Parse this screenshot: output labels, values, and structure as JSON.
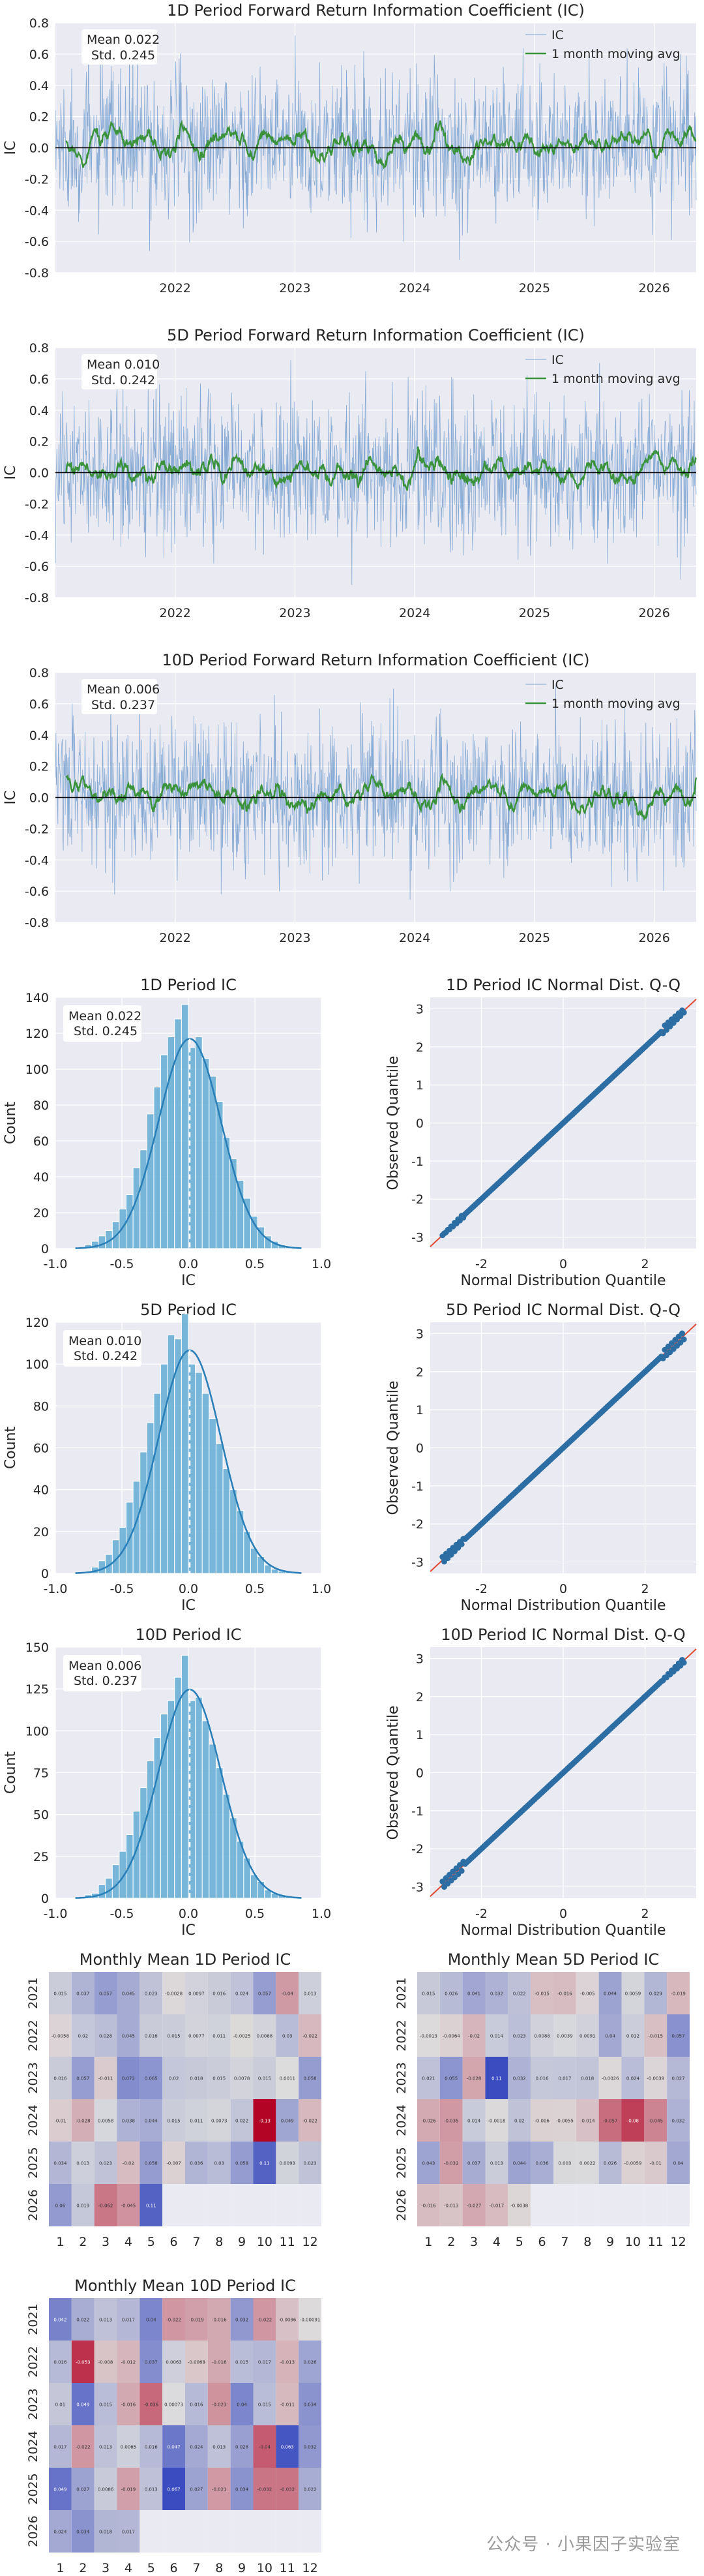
{
  "colors": {
    "panel_bg": "#eaeaf2",
    "grid": "#ffffff",
    "ic_line": "#5b8fc7",
    "moving_avg": "#3a923a",
    "hist_bar": "#5aa8d2",
    "kde": "#2a7fb8",
    "qq_point": "#2c6ea3",
    "qq_line": "#e24a33"
  },
  "timeseries": [
    {
      "title": "1D Period Forward Return Information Coefficient (IC)",
      "stats": [
        "Mean 0.022",
        "Std. 0.245"
      ],
      "ylabel": "IC",
      "legend": [
        "IC",
        "1 month moving avg"
      ],
      "yticks": [
        "0.8",
        "0.6",
        "0.4",
        "0.2",
        "0.0",
        "-0.2",
        "-0.4",
        "-0.6",
        "-0.8"
      ],
      "xticks": [
        "2022",
        "2023",
        "2024",
        "2025",
        "2026"
      ],
      "mean": 0.022,
      "std": 0.245
    },
    {
      "title": "5D Period Forward Return Information Coefficient (IC)",
      "stats": [
        "Mean 0.010",
        "Std. 0.242"
      ],
      "ylabel": "IC",
      "legend": [
        "IC",
        "1 month moving avg"
      ],
      "yticks": [
        "0.8",
        "0.6",
        "0.4",
        "0.2",
        "0.0",
        "-0.2",
        "-0.4",
        "-0.6",
        "-0.8"
      ],
      "xticks": [
        "2022",
        "2023",
        "2024",
        "2025",
        "2026"
      ],
      "mean": 0.01,
      "std": 0.242
    },
    {
      "title": "10D Period Forward Return Information Coefficient (IC)",
      "stats": [
        "Mean 0.006",
        "Std. 0.237"
      ],
      "ylabel": "IC",
      "legend": [
        "IC",
        "1 month moving avg"
      ],
      "yticks": [
        "0.8",
        "0.6",
        "0.4",
        "0.2",
        "0.0",
        "-0.2",
        "-0.4",
        "-0.6",
        "-0.8"
      ],
      "xticks": [
        "2022",
        "2023",
        "2024",
        "2025",
        "2026"
      ],
      "mean": 0.006,
      "std": 0.237
    }
  ],
  "histograms": [
    {
      "title": "1D Period IC",
      "stats": [
        "Mean 0.022",
        "Std. 0.245"
      ],
      "xlabel": "IC",
      "ylabel": "Count",
      "xticks": [
        "-1.0",
        "-0.5",
        "0.0",
        "0.5",
        "1.0"
      ],
      "yticks": [
        "140",
        "120",
        "100",
        "80",
        "60",
        "40",
        "20",
        "0"
      ],
      "ymax": 140,
      "counts": [
        2,
        4,
        7,
        10,
        15,
        22,
        30,
        45,
        55,
        75,
        90,
        108,
        118,
        128,
        136,
        112,
        118,
        106,
        96,
        82,
        62,
        50,
        38,
        28,
        18,
        12,
        7,
        4,
        2,
        1
      ]
    },
    {
      "title": "5D Period IC",
      "stats": [
        "Mean 0.010",
        "Std. 0.242"
      ],
      "xlabel": "IC",
      "ylabel": "Count",
      "xticks": [
        "-1.0",
        "-0.5",
        "0.0",
        "0.5",
        "1.0"
      ],
      "yticks": [
        "120",
        "100",
        "80",
        "60",
        "40",
        "20",
        "0"
      ],
      "ymax": 120,
      "counts": [
        1,
        3,
        6,
        9,
        16,
        22,
        34,
        44,
        58,
        72,
        86,
        100,
        114,
        112,
        124,
        100,
        96,
        86,
        74,
        62,
        50,
        40,
        30,
        20,
        12,
        8,
        4,
        2,
        1,
        1
      ]
    },
    {
      "title": "10D Period IC",
      "stats": [
        "Mean 0.006",
        "Std. 0.237"
      ],
      "xlabel": "IC",
      "ylabel": "Count",
      "xticks": [
        "-1.0",
        "-0.5",
        "0.0",
        "0.5",
        "1.0"
      ],
      "yticks": [
        "150",
        "125",
        "100",
        "75",
        "50",
        "25",
        "0"
      ],
      "ymax": 150,
      "counts": [
        2,
        3,
        8,
        12,
        20,
        28,
        38,
        52,
        66,
        82,
        96,
        110,
        118,
        132,
        145,
        118,
        120,
        106,
        92,
        78,
        62,
        48,
        34,
        24,
        14,
        10,
        5,
        3,
        2,
        1
      ]
    }
  ],
  "qq": [
    {
      "title": "1D Period IC Normal Dist. Q-Q",
      "xlabel": "Normal Distribution Quantile",
      "ylabel": "Observed Quantile",
      "xticks": [
        "-2",
        "0",
        "2"
      ],
      "yticks": [
        "3",
        "2",
        "1",
        "0",
        "-1",
        "-2",
        "-3"
      ]
    },
    {
      "title": "5D Period IC Normal Dist. Q-Q",
      "xlabel": "Normal Distribution Quantile",
      "ylabel": "Observed Quantile",
      "xticks": [
        "-2",
        "0",
        "2"
      ],
      "yticks": [
        "3",
        "2",
        "1",
        "0",
        "-1",
        "-2",
        "-3"
      ]
    },
    {
      "title": "10D Period IC Normal Dist. Q-Q",
      "xlabel": "Normal Distribution Quantile",
      "ylabel": "Observed Quantile",
      "xticks": [
        "-2",
        "0",
        "2"
      ],
      "yticks": [
        "3",
        "2",
        "1",
        "0",
        "-1",
        "-2",
        "-3"
      ]
    }
  ],
  "heatmaps": [
    {
      "title": "Monthly Mean 1D Period IC",
      "years": [
        "2021",
        "2022",
        "2023",
        "2024",
        "2025",
        "2026"
      ],
      "months": [
        "1",
        "2",
        "3",
        "4",
        "5",
        "6",
        "7",
        "8",
        "9",
        "10",
        "11",
        "12"
      ],
      "values": [
        [
          0.015,
          0.037,
          0.057,
          0.045,
          0.023,
          -0.0028,
          0.0097,
          0.016,
          0.024,
          0.057,
          -0.04,
          0.013
        ],
        [
          -0.0058,
          0.02,
          0.028,
          0.045,
          0.016,
          0.015,
          0.0077,
          0.011,
          -0.0025,
          0.0088,
          0.03,
          -0.022
        ],
        [
          0.016,
          0.057,
          -0.011,
          0.072,
          0.065,
          0.02,
          0.018,
          0.015,
          0.0078,
          0.015,
          0.0011,
          0.058
        ],
        [
          -0.01,
          -0.028,
          0.0058,
          0.038,
          0.044,
          0.015,
          0.011,
          0.0073,
          0.022,
          -0.13,
          0.049,
          -0.022
        ],
        [
          0.034,
          0.013,
          0.023,
          -0.02,
          0.058,
          -0.007,
          0.036,
          0.03,
          0.058,
          0.11,
          0.0093,
          0.023
        ],
        [
          0.06,
          0.019,
          -0.062,
          -0.045,
          0.11,
          null,
          null,
          null,
          null,
          null,
          null,
          null
        ]
      ]
    },
    {
      "title": "Monthly Mean 5D Period IC",
      "years": [
        "2021",
        "2022",
        "2023",
        "2024",
        "2025",
        "2026"
      ],
      "months": [
        "1",
        "2",
        "3",
        "4",
        "5",
        "6",
        "7",
        "8",
        "9",
        "10",
        "11",
        "12"
      ],
      "values": [
        [
          0.015,
          0.026,
          0.041,
          0.032,
          0.022,
          -0.015,
          -0.016,
          -0.005,
          0.044,
          0.0059,
          0.029,
          -0.019
        ],
        [
          -0.0013,
          -0.0064,
          -0.02,
          0.014,
          0.023,
          0.0088,
          0.0039,
          0.0091,
          0.04,
          0.012,
          -0.015,
          0.057
        ],
        [
          0.021,
          0.055,
          -0.028,
          0.11,
          0.032,
          0.016,
          0.017,
          0.018,
          -0.0026,
          0.024,
          -0.0039,
          0.027
        ],
        [
          -0.026,
          -0.035,
          0.014,
          -0.0018,
          0.02,
          -0.006,
          -0.0055,
          -0.014,
          -0.057,
          -0.08,
          -0.045,
          0.032
        ],
        [
          0.043,
          -0.032,
          0.037,
          0.013,
          0.044,
          0.036,
          0.003,
          0.0022,
          0.026,
          -0.0059,
          -0.01,
          0.04
        ],
        [
          -0.016,
          -0.013,
          -0.027,
          -0.017,
          -0.0038,
          null,
          null,
          null,
          null,
          null,
          null,
          null
        ]
      ]
    },
    {
      "title": "Monthly Mean 10D Period IC",
      "years": [
        "2021",
        "2022",
        "2023",
        "2024",
        "2025",
        "2026"
      ],
      "months": [
        "1",
        "2",
        "3",
        "4",
        "5",
        "6",
        "7",
        "8",
        "9",
        "10",
        "11",
        "12"
      ],
      "values": [
        [
          0.042,
          0.022,
          0.013,
          0.017,
          0.04,
          -0.022,
          -0.019,
          -0.016,
          0.032,
          -0.022,
          -0.0086,
          -0.00091
        ],
        [
          0.016,
          -0.053,
          -0.008,
          -0.012,
          0.037,
          0.0063,
          -0.0068,
          -0.016,
          0.015,
          0.017,
          -0.013,
          0.026
        ],
        [
          0.01,
          0.049,
          0.015,
          -0.016,
          -0.036,
          0.00073,
          0.016,
          -0.023,
          0.04,
          0.015,
          -0.011,
          0.034
        ],
        [
          0.017,
          -0.022,
          0.013,
          0.0065,
          0.016,
          0.047,
          0.024,
          0.013,
          0.028,
          -0.04,
          0.063,
          0.032
        ],
        [
          0.049,
          0.027,
          0.0086,
          -0.019,
          0.013,
          0.067,
          0.027,
          -0.021,
          0.034,
          -0.032,
          -0.032,
          0.022
        ],
        [
          0.024,
          0.034,
          0.018,
          0.017,
          null,
          null,
          null,
          null,
          null,
          null,
          null,
          null
        ]
      ]
    }
  ],
  "chart_data": [
    {
      "type": "line",
      "title": "1D Period Forward Return Information Coefficient (IC)",
      "ylabel": "IC",
      "ylim": [
        -0.8,
        0.8
      ],
      "x": [
        "2021",
        "2022",
        "2023",
        "2024",
        "2025",
        "2026"
      ],
      "series": [
        {
          "name": "IC"
        },
        {
          "name": "1 month moving avg"
        }
      ],
      "annotations": [
        "Mean 0.022",
        "Std. 0.245"
      ]
    },
    {
      "type": "line",
      "title": "5D Period Forward Return Information Coefficient (IC)",
      "ylabel": "IC",
      "ylim": [
        -0.8,
        0.8
      ],
      "series": [
        {
          "name": "IC"
        },
        {
          "name": "1 month moving avg"
        }
      ],
      "annotations": [
        "Mean 0.010",
        "Std. 0.242"
      ]
    },
    {
      "type": "line",
      "title": "10D Period Forward Return Information Coefficient (IC)",
      "ylabel": "IC",
      "ylim": [
        -0.8,
        0.8
      ],
      "series": [
        {
          "name": "IC"
        },
        {
          "name": "1 month moving avg"
        }
      ],
      "annotations": [
        "Mean 0.006",
        "Std. 0.237"
      ]
    },
    {
      "type": "bar",
      "title": "1D Period IC",
      "xlabel": "IC",
      "ylabel": "Count",
      "xlim": [
        -1.0,
        1.0
      ],
      "ylim": [
        0,
        140
      ]
    },
    {
      "type": "scatter",
      "title": "1D Period IC Normal Dist. Q-Q",
      "xlabel": "Normal Distribution Quantile",
      "ylabel": "Observed Quantile"
    },
    {
      "type": "bar",
      "title": "5D Period IC",
      "xlabel": "IC",
      "ylabel": "Count",
      "xlim": [
        -1.0,
        1.0
      ],
      "ylim": [
        0,
        120
      ]
    },
    {
      "type": "scatter",
      "title": "5D Period IC Normal Dist. Q-Q",
      "xlabel": "Normal Distribution Quantile",
      "ylabel": "Observed Quantile"
    },
    {
      "type": "bar",
      "title": "10D Period IC",
      "xlabel": "IC",
      "ylabel": "Count",
      "xlim": [
        -1.0,
        1.0
      ],
      "ylim": [
        0,
        150
      ]
    },
    {
      "type": "scatter",
      "title": "10D Period IC Normal Dist. Q-Q",
      "xlabel": "Normal Distribution Quantile",
      "ylabel": "Observed Quantile"
    },
    {
      "type": "heatmap",
      "title": "Monthly Mean 1D Period IC"
    },
    {
      "type": "heatmap",
      "title": "Monthly Mean 5D Period IC"
    },
    {
      "type": "heatmap",
      "title": "Monthly Mean 10D Period IC"
    }
  ],
  "watermark": "公众号 · 小果因子实验室"
}
